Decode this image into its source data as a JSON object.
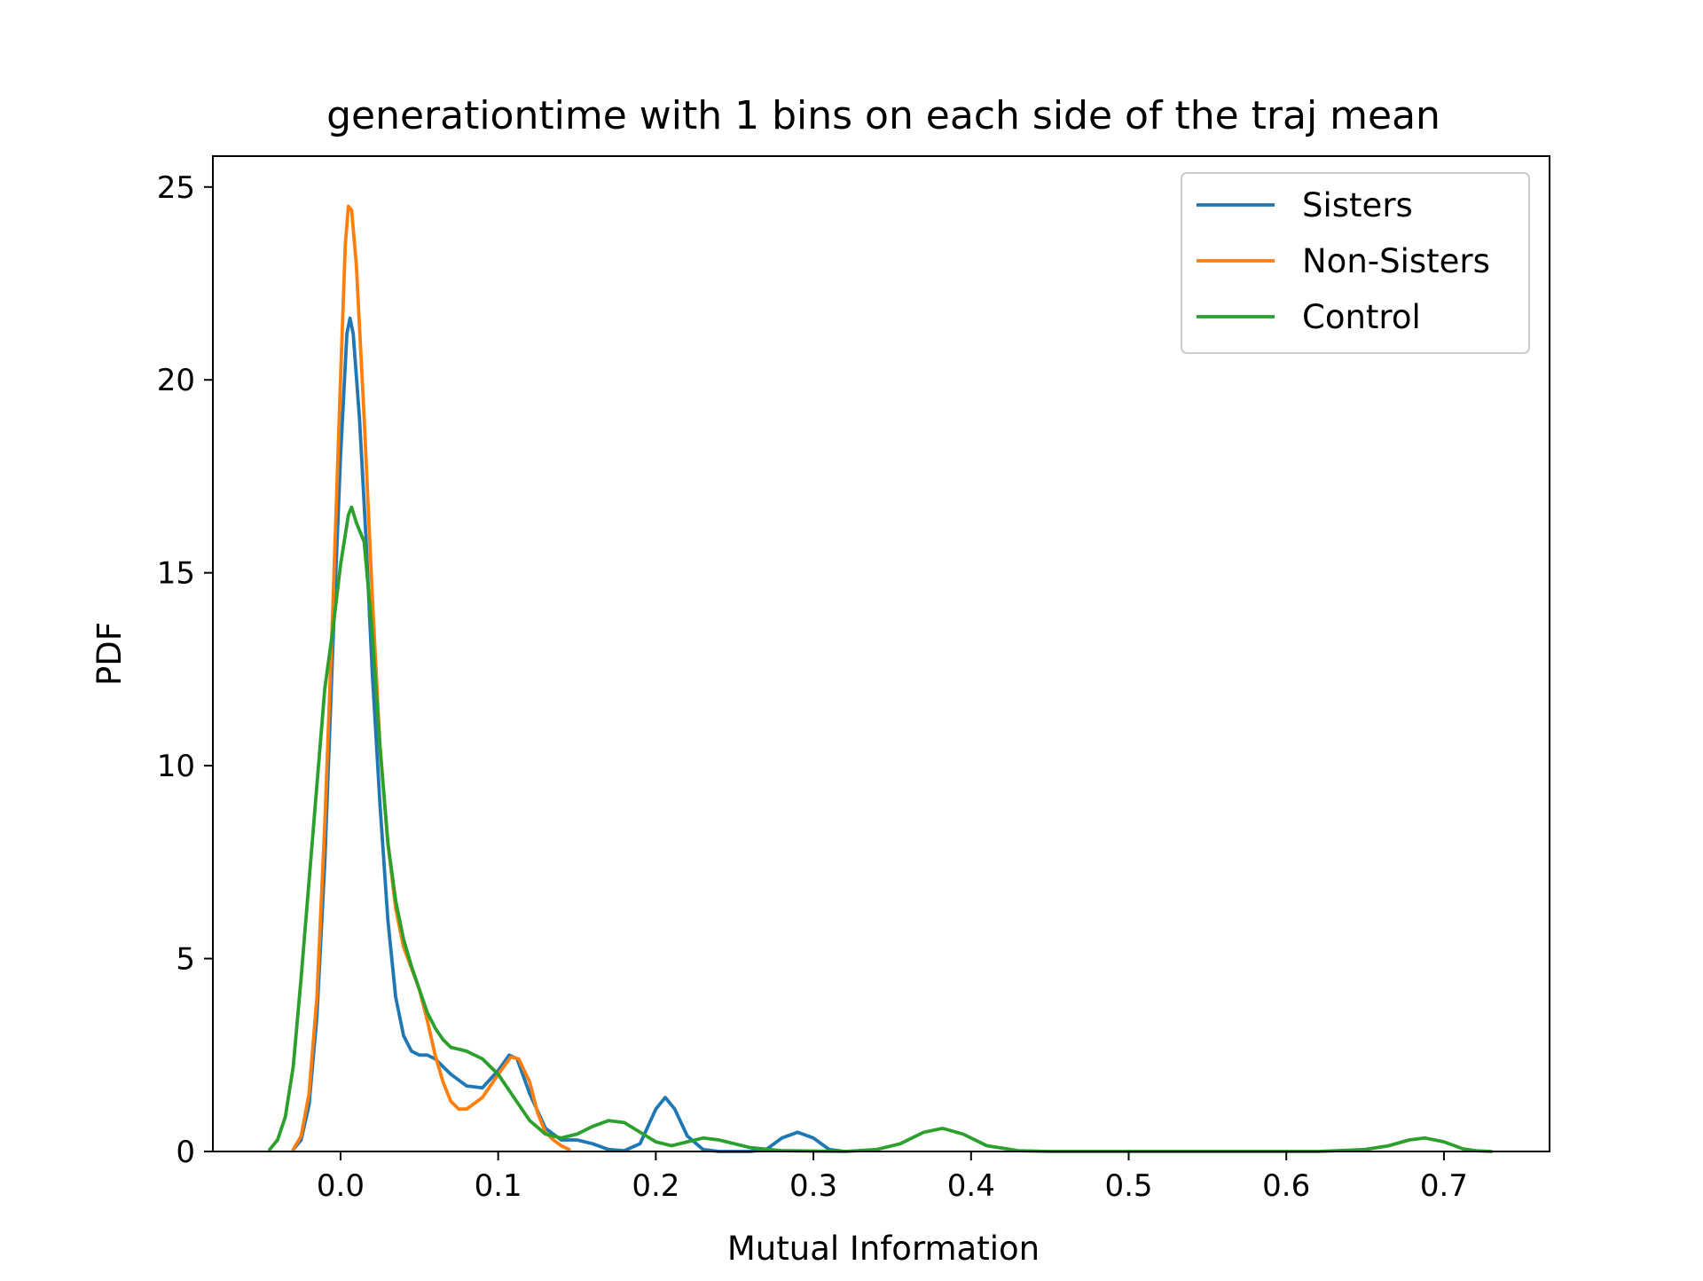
{
  "chart_data": {
    "type": "line",
    "title": "generationtime with 1 bins on each side of the traj mean",
    "xlabel": "Mutual Information",
    "ylabel": "PDF",
    "xlim": [
      -0.081,
      0.767
    ],
    "ylim": [
      0,
      25.8
    ],
    "xticks": [
      0.0,
      0.1,
      0.2,
      0.3,
      0.4,
      0.5,
      0.6,
      0.7
    ],
    "xtick_labels": [
      "0.0",
      "0.1",
      "0.2",
      "0.3",
      "0.4",
      "0.5",
      "0.6",
      "0.7"
    ],
    "yticks": [
      0,
      5,
      10,
      15,
      20,
      25
    ],
    "ytick_labels": [
      "0",
      "5",
      "10",
      "15",
      "20",
      "25"
    ],
    "grid": false,
    "legend_position": "top-right",
    "series": [
      {
        "name": "Sisters",
        "color": "#1f77b4",
        "points": [
          [
            -0.03,
            0.05
          ],
          [
            -0.025,
            0.3
          ],
          [
            -0.02,
            1.2
          ],
          [
            -0.015,
            3.5
          ],
          [
            -0.01,
            7.5
          ],
          [
            -0.005,
            13.0
          ],
          [
            0.0,
            18.0
          ],
          [
            0.004,
            21.2
          ],
          [
            0.006,
            21.6
          ],
          [
            0.008,
            21.2
          ],
          [
            0.012,
            19.0
          ],
          [
            0.016,
            16.0
          ],
          [
            0.02,
            12.5
          ],
          [
            0.025,
            9.0
          ],
          [
            0.03,
            6.0
          ],
          [
            0.035,
            4.0
          ],
          [
            0.04,
            3.0
          ],
          [
            0.045,
            2.6
          ],
          [
            0.05,
            2.5
          ],
          [
            0.055,
            2.5
          ],
          [
            0.06,
            2.4
          ],
          [
            0.07,
            2.0
          ],
          [
            0.08,
            1.7
          ],
          [
            0.09,
            1.65
          ],
          [
            0.1,
            2.1
          ],
          [
            0.107,
            2.5
          ],
          [
            0.112,
            2.4
          ],
          [
            0.12,
            1.5
          ],
          [
            0.13,
            0.6
          ],
          [
            0.14,
            0.3
          ],
          [
            0.15,
            0.3
          ],
          [
            0.16,
            0.2
          ],
          [
            0.17,
            0.05
          ],
          [
            0.18,
            0.02
          ],
          [
            0.19,
            0.2
          ],
          [
            0.2,
            1.1
          ],
          [
            0.206,
            1.4
          ],
          [
            0.212,
            1.1
          ],
          [
            0.22,
            0.4
          ],
          [
            0.23,
            0.05
          ],
          [
            0.24,
            0.0
          ],
          [
            0.26,
            0.0
          ],
          [
            0.27,
            0.05
          ],
          [
            0.28,
            0.35
          ],
          [
            0.29,
            0.5
          ],
          [
            0.3,
            0.35
          ],
          [
            0.31,
            0.05
          ],
          [
            0.32,
            0.0
          ]
        ]
      },
      {
        "name": "Non-Sisters",
        "color": "#ff7f0e",
        "points": [
          [
            -0.03,
            0.05
          ],
          [
            -0.025,
            0.4
          ],
          [
            -0.02,
            1.5
          ],
          [
            -0.015,
            4.0
          ],
          [
            -0.01,
            8.5
          ],
          [
            -0.005,
            14.0
          ],
          [
            0.0,
            20.0
          ],
          [
            0.003,
            23.5
          ],
          [
            0.005,
            24.5
          ],
          [
            0.007,
            24.4
          ],
          [
            0.01,
            23.0
          ],
          [
            0.015,
            19.0
          ],
          [
            0.02,
            14.5
          ],
          [
            0.025,
            10.5
          ],
          [
            0.03,
            8.0
          ],
          [
            0.035,
            6.3
          ],
          [
            0.04,
            5.3
          ],
          [
            0.05,
            4.2
          ],
          [
            0.055,
            3.4
          ],
          [
            0.06,
            2.5
          ],
          [
            0.065,
            1.8
          ],
          [
            0.07,
            1.3
          ],
          [
            0.075,
            1.1
          ],
          [
            0.08,
            1.1
          ],
          [
            0.09,
            1.4
          ],
          [
            0.1,
            2.0
          ],
          [
            0.108,
            2.45
          ],
          [
            0.113,
            2.4
          ],
          [
            0.12,
            1.8
          ],
          [
            0.125,
            1.0
          ],
          [
            0.13,
            0.5
          ],
          [
            0.135,
            0.3
          ],
          [
            0.14,
            0.15
          ],
          [
            0.145,
            0.05
          ]
        ]
      },
      {
        "name": "Control",
        "color": "#2ca02c",
        "points": [
          [
            -0.045,
            0.05
          ],
          [
            -0.04,
            0.3
          ],
          [
            -0.035,
            0.9
          ],
          [
            -0.03,
            2.2
          ],
          [
            -0.025,
            4.5
          ],
          [
            -0.02,
            7.0
          ],
          [
            -0.015,
            9.5
          ],
          [
            -0.01,
            12.0
          ],
          [
            -0.005,
            13.5
          ],
          [
            0.0,
            15.2
          ],
          [
            0.005,
            16.5
          ],
          [
            0.007,
            16.7
          ],
          [
            0.01,
            16.3
          ],
          [
            0.015,
            15.8
          ],
          [
            0.02,
            13.5
          ],
          [
            0.025,
            10.5
          ],
          [
            0.03,
            8.0
          ],
          [
            0.035,
            6.5
          ],
          [
            0.04,
            5.5
          ],
          [
            0.045,
            4.8
          ],
          [
            0.05,
            4.2
          ],
          [
            0.055,
            3.6
          ],
          [
            0.06,
            3.2
          ],
          [
            0.065,
            2.9
          ],
          [
            0.07,
            2.7
          ],
          [
            0.08,
            2.6
          ],
          [
            0.09,
            2.4
          ],
          [
            0.1,
            2.0
          ],
          [
            0.11,
            1.4
          ],
          [
            0.12,
            0.8
          ],
          [
            0.13,
            0.45
          ],
          [
            0.14,
            0.35
          ],
          [
            0.15,
            0.45
          ],
          [
            0.16,
            0.65
          ],
          [
            0.17,
            0.8
          ],
          [
            0.18,
            0.75
          ],
          [
            0.19,
            0.5
          ],
          [
            0.2,
            0.25
          ],
          [
            0.21,
            0.15
          ],
          [
            0.22,
            0.25
          ],
          [
            0.23,
            0.35
          ],
          [
            0.24,
            0.3
          ],
          [
            0.26,
            0.1
          ],
          [
            0.28,
            0.02
          ],
          [
            0.32,
            0.0
          ],
          [
            0.34,
            0.05
          ],
          [
            0.355,
            0.2
          ],
          [
            0.37,
            0.5
          ],
          [
            0.382,
            0.6
          ],
          [
            0.395,
            0.45
          ],
          [
            0.41,
            0.15
          ],
          [
            0.43,
            0.02
          ],
          [
            0.45,
            0.0
          ],
          [
            0.62,
            0.0
          ],
          [
            0.65,
            0.05
          ],
          [
            0.665,
            0.15
          ],
          [
            0.678,
            0.3
          ],
          [
            0.688,
            0.35
          ],
          [
            0.7,
            0.25
          ],
          [
            0.712,
            0.07
          ],
          [
            0.72,
            0.02
          ],
          [
            0.73,
            0.0
          ]
        ]
      }
    ]
  }
}
